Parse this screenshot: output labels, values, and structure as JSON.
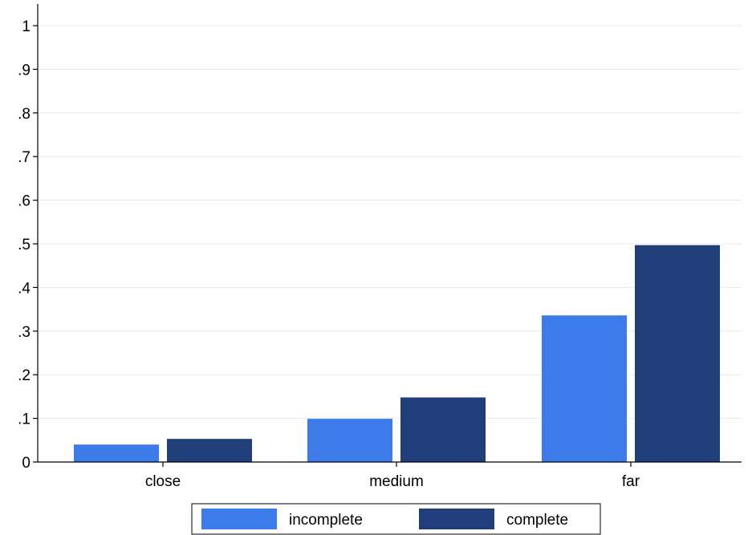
{
  "chart_data": {
    "type": "bar",
    "categories": [
      "close",
      "medium",
      "far"
    ],
    "series": [
      {
        "name": "incomplete",
        "color": "#3e7bea",
        "values": [
          0.04,
          0.099,
          0.336
        ]
      },
      {
        "name": "complete",
        "color": "#1f3e7a",
        "values": [
          0.053,
          0.148,
          0.497
        ]
      }
    ],
    "yticks": [
      {
        "value": 0,
        "label": "0"
      },
      {
        "value": 0.1,
        "label": ".1"
      },
      {
        "value": 0.2,
        "label": ".2"
      },
      {
        "value": 0.3,
        "label": ".3"
      },
      {
        "value": 0.4,
        "label": ".4"
      },
      {
        "value": 0.5,
        "label": ".5"
      },
      {
        "value": 0.6,
        "label": ".6"
      },
      {
        "value": 0.7,
        "label": ".7"
      },
      {
        "value": 0.8,
        "label": ".8"
      },
      {
        "value": 0.9,
        "label": ".9"
      },
      {
        "value": 1,
        "label": "1"
      }
    ],
    "ylim": [
      0,
      1
    ],
    "grid": true,
    "legend_position": "bottom"
  }
}
